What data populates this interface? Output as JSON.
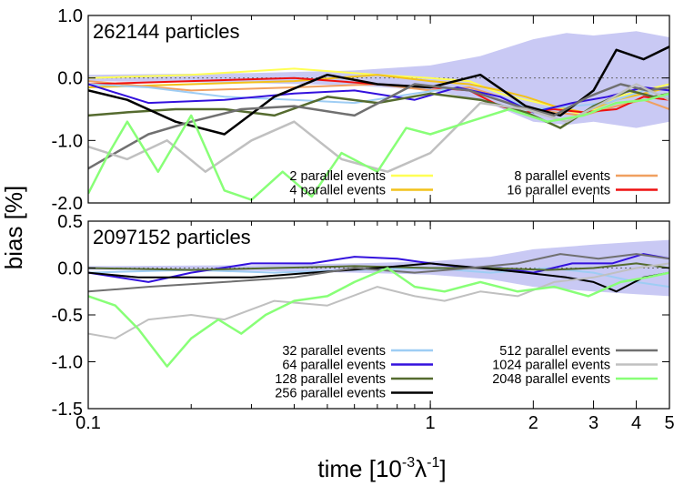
{
  "xlabel_main": "time [10",
  "xlabel_exp1": "-3",
  "xlabel_lambda": "λ",
  "xlabel_exp2": "-1",
  "xlabel_close": "]",
  "ylabel": "bias [%]",
  "chart_data": [
    {
      "type": "line",
      "title": "262144 particles",
      "xscale": "log",
      "xlim": [
        0.1,
        5
      ],
      "ylim": [
        -2.0,
        1.0
      ],
      "x_ticks": [
        "0.1",
        "1",
        "2",
        "3",
        "4",
        "5"
      ],
      "y_ticks": [
        "1.0",
        "0.0",
        "-1.0",
        "-2.0"
      ],
      "band": {
        "color": "#c9c9f4",
        "x": [
          0.1,
          0.3,
          0.6,
          1.0,
          1.4,
          2.0,
          2.5,
          3.0,
          4.0,
          5.0
        ],
        "upper": [
          0.05,
          0.08,
          0.12,
          0.2,
          0.35,
          0.62,
          0.72,
          0.68,
          0.75,
          0.65
        ],
        "lower": [
          -0.05,
          -0.08,
          -0.12,
          -0.2,
          -0.35,
          -0.7,
          -0.75,
          -0.7,
          -0.8,
          -0.7
        ]
      },
      "legend_placement": "bottom",
      "series": [
        {
          "name": "2 parallel events",
          "color": "#ffff55",
          "width": 2,
          "x": [
            0.1,
            0.2,
            0.4,
            0.7,
            1.0,
            1.3,
            1.6,
            1.9,
            2.3,
            2.8,
            3.5,
            4.2,
            5.0
          ],
          "y": [
            0.0,
            0.05,
            0.15,
            0.05,
            0.0,
            -0.05,
            -0.25,
            -0.35,
            -0.45,
            -0.6,
            -0.3,
            -0.2,
            -0.1
          ]
        },
        {
          "name": "4 parallel events",
          "color": "#f2c21a",
          "width": 2,
          "x": [
            0.1,
            0.2,
            0.4,
            0.7,
            1.0,
            1.3,
            1.6,
            1.9,
            2.3,
            2.8,
            3.5,
            4.2,
            5.0
          ],
          "y": [
            -0.15,
            -0.1,
            -0.05,
            0.05,
            -0.05,
            -0.1,
            -0.2,
            -0.3,
            -0.45,
            -0.55,
            -0.35,
            -0.25,
            -0.15
          ]
        },
        {
          "name": "8 parallel events",
          "color": "#f0a060",
          "width": 2,
          "x": [
            0.1,
            0.2,
            0.4,
            0.7,
            1.0,
            1.3,
            1.6,
            1.9,
            2.3,
            2.8,
            3.5,
            4.2,
            5.0
          ],
          "y": [
            -0.05,
            -0.2,
            -0.15,
            -0.1,
            -0.2,
            -0.15,
            -0.3,
            -0.5,
            -0.55,
            -0.6,
            -0.45,
            -0.35,
            -0.5
          ]
        },
        {
          "name": "16 parallel events",
          "color": "#ee1111",
          "width": 2,
          "x": [
            0.1,
            0.2,
            0.4,
            0.7,
            1.0,
            1.3,
            1.6,
            1.9,
            2.3,
            2.8,
            3.5,
            4.2,
            5.0
          ],
          "y": [
            -0.1,
            -0.05,
            0.0,
            -0.1,
            -0.15,
            -0.2,
            -0.45,
            -0.55,
            -0.5,
            -0.55,
            -0.5,
            -0.3,
            -0.35
          ]
        },
        {
          "name": "32 parallel events",
          "color": "#9ecdf4",
          "width": 2,
          "x": [
            0.1,
            0.15,
            0.25,
            0.4,
            0.6,
            0.9,
            1.2,
            1.6,
            2.0,
            2.6,
            3.3,
            4.2,
            5.0
          ],
          "y": [
            -0.1,
            -0.15,
            -0.3,
            -0.35,
            -0.4,
            -0.25,
            -0.15,
            -0.3,
            -0.5,
            -0.45,
            -0.4,
            -0.2,
            -0.3
          ]
        },
        {
          "name": "64 parallel events",
          "color": "#3311dd",
          "width": 2,
          "x": [
            0.1,
            0.15,
            0.25,
            0.4,
            0.6,
            0.9,
            1.2,
            1.6,
            2.0,
            2.6,
            3.3,
            4.2,
            5.0
          ],
          "y": [
            -0.1,
            -0.4,
            -0.35,
            -0.25,
            -0.2,
            -0.35,
            -0.15,
            -0.3,
            -0.55,
            -0.4,
            -0.3,
            -0.15,
            -0.2
          ]
        },
        {
          "name": "128 parallel events",
          "color": "#556b2f",
          "width": 2.5,
          "x": [
            0.1,
            0.13,
            0.18,
            0.25,
            0.35,
            0.5,
            0.7,
            1.0,
            1.4,
            1.9,
            2.4,
            3.0,
            3.8,
            4.5,
            5.0
          ],
          "y": [
            -0.6,
            -0.55,
            -0.5,
            -0.5,
            -0.6,
            -0.3,
            -0.4,
            -0.25,
            -0.35,
            -0.55,
            -0.8,
            -0.45,
            -0.2,
            -0.3,
            -0.25
          ]
        },
        {
          "name": "256 parallel events",
          "color": "#000000",
          "width": 2.5,
          "x": [
            0.1,
            0.13,
            0.18,
            0.25,
            0.35,
            0.5,
            0.7,
            1.0,
            1.4,
            1.9,
            2.4,
            3.0,
            3.5,
            4.2,
            5.0
          ],
          "y": [
            -0.2,
            -0.35,
            -0.7,
            -0.9,
            -0.3,
            0.05,
            -0.1,
            -0.15,
            0.05,
            -0.45,
            -0.6,
            -0.2,
            0.45,
            0.3,
            0.5
          ]
        },
        {
          "name": "512 parallel events",
          "color": "#707070",
          "width": 2.5,
          "x": [
            0.1,
            0.12,
            0.15,
            0.2,
            0.28,
            0.4,
            0.6,
            0.9,
            1.3,
            1.8,
            2.3,
            2.9,
            3.6,
            4.3,
            5.0
          ],
          "y": [
            -1.45,
            -1.2,
            -0.9,
            -0.7,
            -0.5,
            -0.45,
            -0.6,
            -0.1,
            -0.2,
            -0.45,
            -0.6,
            -0.3,
            -0.1,
            -0.2,
            -0.15
          ]
        },
        {
          "name": "1024 parallel events",
          "color": "#c0c0c0",
          "width": 2.5,
          "x": [
            0.1,
            0.13,
            0.17,
            0.22,
            0.3,
            0.4,
            0.55,
            0.75,
            1.0,
            1.4,
            1.9,
            2.5,
            3.2,
            4.0,
            5.0
          ],
          "y": [
            -1.1,
            -1.3,
            -1.0,
            -1.5,
            -1.0,
            -0.7,
            -1.3,
            -1.5,
            -1.2,
            -0.4,
            -0.5,
            -0.7,
            -0.4,
            -0.1,
            -0.35
          ]
        },
        {
          "name": "2048 parallel events",
          "color": "#88ff77",
          "width": 2.5,
          "x": [
            0.1,
            0.115,
            0.13,
            0.16,
            0.2,
            0.25,
            0.3,
            0.37,
            0.45,
            0.55,
            0.7,
            0.85,
            1.0,
            1.3,
            1.7,
            2.2,
            2.8,
            3.5,
            4.3,
            5.0
          ],
          "y": [
            -1.85,
            -1.2,
            -0.7,
            -1.5,
            -0.6,
            -1.8,
            -1.95,
            -1.5,
            -1.9,
            -1.2,
            -1.5,
            -0.8,
            -0.9,
            -0.7,
            -0.5,
            -0.7,
            -0.6,
            -0.4,
            -0.35,
            -0.25
          ]
        }
      ]
    },
    {
      "type": "line",
      "title": "2097152 particles",
      "xscale": "log",
      "xlim": [
        0.1,
        5
      ],
      "ylim": [
        -1.5,
        0.5
      ],
      "x_ticks": [
        "0.1",
        "1",
        "2",
        "3",
        "4",
        "5"
      ],
      "y_ticks": [
        "0.5",
        "0.0",
        "-0.5",
        "-1.0",
        "-1.5"
      ],
      "band": {
        "color": "#c9c9f4",
        "x": [
          0.1,
          0.3,
          0.6,
          1.0,
          1.5,
          2.0,
          3.0,
          4.0,
          5.0
        ],
        "upper": [
          0.02,
          0.03,
          0.05,
          0.07,
          0.12,
          0.2,
          0.25,
          0.28,
          0.3
        ],
        "lower": [
          -0.02,
          -0.03,
          -0.05,
          -0.07,
          -0.12,
          -0.2,
          -0.25,
          -0.28,
          -0.3
        ]
      },
      "legend_placement": "bottom",
      "series": [
        {
          "name": "32 parallel events",
          "color": "#9ecdf4",
          "width": 2,
          "x": [
            0.1,
            0.2,
            0.35,
            0.6,
            1.0,
            1.5,
            2.2,
            3.0,
            4.0,
            5.0
          ],
          "y": [
            -0.05,
            -0.02,
            -0.05,
            -0.02,
            0.0,
            -0.05,
            0.0,
            -0.05,
            -0.15,
            -0.2
          ]
        },
        {
          "name": "64 parallel events",
          "color": "#3311dd",
          "width": 2,
          "x": [
            0.1,
            0.15,
            0.2,
            0.3,
            0.45,
            0.6,
            0.8,
            1.0,
            1.3,
            1.6,
            2.0,
            2.6,
            3.4,
            4.2,
            5.0
          ],
          "y": [
            -0.05,
            -0.15,
            -0.05,
            0.05,
            0.05,
            0.12,
            0.1,
            0.05,
            0.0,
            0.0,
            -0.05,
            0.05,
            0.05,
            0.15,
            0.1
          ]
        },
        {
          "name": "128 parallel events",
          "color": "#556b2f",
          "width": 2,
          "x": [
            0.1,
            0.2,
            0.35,
            0.6,
            1.0,
            1.5,
            2.2,
            3.0,
            4.0,
            5.0
          ],
          "y": [
            0.0,
            -0.02,
            0.0,
            0.02,
            0.0,
            0.0,
            -0.02,
            0.0,
            0.05,
            0.0
          ]
        },
        {
          "name": "256 parallel events",
          "color": "#000000",
          "width": 2,
          "x": [
            0.1,
            0.14,
            0.2,
            0.3,
            0.45,
            0.7,
            1.0,
            1.4,
            1.9,
            2.5,
            3.0,
            3.5,
            4.2,
            5.0
          ],
          "y": [
            -0.05,
            -0.1,
            -0.1,
            -0.1,
            -0.05,
            0.0,
            0.05,
            0.0,
            -0.05,
            -0.1,
            -0.15,
            -0.25,
            -0.1,
            -0.05
          ]
        },
        {
          "name": "512 parallel events",
          "color": "#707070",
          "width": 2,
          "x": [
            0.1,
            0.15,
            0.25,
            0.4,
            0.6,
            0.9,
            1.3,
            1.8,
            2.4,
            3.1,
            4.0,
            5.0
          ],
          "y": [
            -0.25,
            -0.2,
            -0.15,
            -0.1,
            0.0,
            -0.05,
            0.0,
            0.05,
            0.15,
            0.1,
            0.15,
            0.1
          ]
        },
        {
          "name": "1024 parallel events",
          "color": "#c0c0c0",
          "width": 2,
          "x": [
            0.1,
            0.12,
            0.15,
            0.2,
            0.25,
            0.35,
            0.5,
            0.7,
            0.9,
            1.1,
            1.4,
            1.8,
            2.3,
            3.0,
            4.0,
            5.0
          ],
          "y": [
            -0.7,
            -0.75,
            -0.55,
            -0.5,
            -0.55,
            -0.35,
            -0.4,
            -0.2,
            -0.3,
            -0.35,
            -0.25,
            -0.3,
            -0.15,
            -0.1,
            0.0,
            0.05
          ]
        },
        {
          "name": "2048 parallel events",
          "color": "#88ff77",
          "width": 2.5,
          "x": [
            0.1,
            0.12,
            0.14,
            0.17,
            0.2,
            0.24,
            0.28,
            0.33,
            0.4,
            0.5,
            0.6,
            0.75,
            0.9,
            1.1,
            1.4,
            1.8,
            2.3,
            2.9,
            3.6,
            4.3,
            5.0
          ],
          "y": [
            -0.3,
            -0.4,
            -0.65,
            -1.05,
            -0.75,
            -0.55,
            -0.7,
            -0.5,
            -0.35,
            -0.3,
            -0.15,
            0.0,
            -0.2,
            -0.25,
            -0.15,
            -0.25,
            -0.2,
            -0.3,
            -0.15,
            -0.1,
            -0.05
          ]
        }
      ]
    }
  ],
  "legends": [
    {
      "columns": [
        [
          "2 parallel events",
          "4 parallel events"
        ],
        [
          "8 parallel events",
          "16 parallel events"
        ]
      ]
    },
    {
      "columns": [
        [
          "32 parallel events",
          "64 parallel events",
          "128 parallel events",
          "256 parallel events"
        ],
        [
          "512 parallel events",
          "1024 parallel events",
          "2048 parallel events"
        ]
      ]
    }
  ]
}
